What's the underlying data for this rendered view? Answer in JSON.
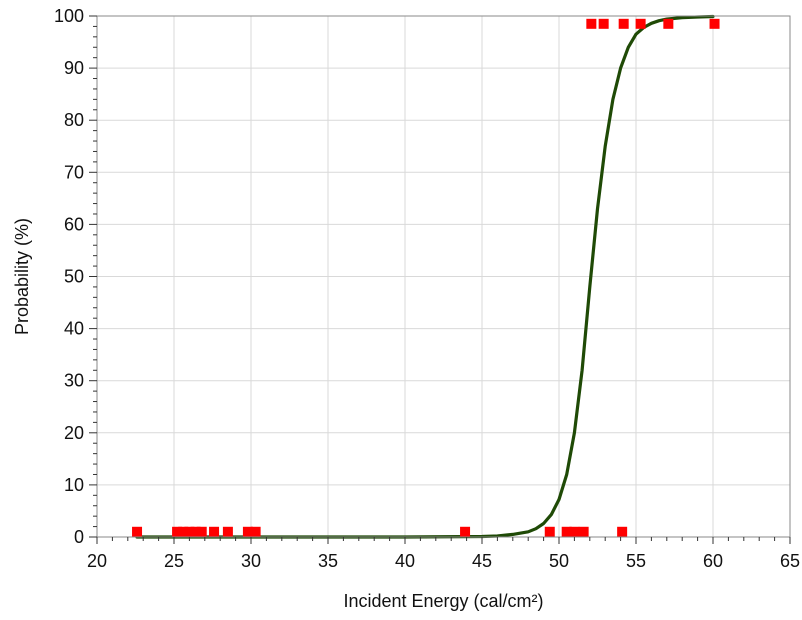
{
  "chart_data": {
    "type": "scatter",
    "title": "",
    "xlabel": "Incident Energy (cal/cm²)",
    "ylabel": "Probability (%)",
    "xlim": [
      20,
      65
    ],
    "ylim": [
      0,
      100
    ],
    "x_ticks": [
      "20",
      "25",
      "30",
      "35",
      "40",
      "45",
      "50",
      "55",
      "60",
      "65"
    ],
    "y_ticks": [
      "0",
      "10",
      "20",
      "30",
      "40",
      "50",
      "60",
      "70",
      "80",
      "90",
      "100"
    ],
    "grid": true,
    "legend": "none",
    "series": [
      {
        "kind": "points",
        "color": "#ff0000",
        "marker": "square",
        "points": [
          {
            "x": 22.6,
            "y": 1
          },
          {
            "x": 25.2,
            "y": 1
          },
          {
            "x": 25.6,
            "y": 1
          },
          {
            "x": 26.0,
            "y": 1
          },
          {
            "x": 26.4,
            "y": 1
          },
          {
            "x": 26.8,
            "y": 1
          },
          {
            "x": 27.6,
            "y": 1
          },
          {
            "x": 28.5,
            "y": 1
          },
          {
            "x": 29.8,
            "y": 1
          },
          {
            "x": 30.3,
            "y": 1
          },
          {
            "x": 43.9,
            "y": 1
          },
          {
            "x": 49.4,
            "y": 1
          },
          {
            "x": 50.5,
            "y": 1
          },
          {
            "x": 51.0,
            "y": 1
          },
          {
            "x": 51.6,
            "y": 1
          },
          {
            "x": 54.1,
            "y": 1
          },
          {
            "x": 52.1,
            "y": 98.5
          },
          {
            "x": 52.9,
            "y": 98.5
          },
          {
            "x": 54.2,
            "y": 98.5
          },
          {
            "x": 55.3,
            "y": 98.5
          },
          {
            "x": 57.1,
            "y": 98.5
          },
          {
            "x": 60.1,
            "y": 98.5
          }
        ]
      },
      {
        "kind": "curve",
        "color": "#1f4a06",
        "points": [
          {
            "x": 22.6,
            "y": 0
          },
          {
            "x": 30,
            "y": 0
          },
          {
            "x": 40,
            "y": 0
          },
          {
            "x": 45,
            "y": 0.1
          },
          {
            "x": 46,
            "y": 0.2
          },
          {
            "x": 47,
            "y": 0.5
          },
          {
            "x": 48,
            "y": 1.0
          },
          {
            "x": 48.5,
            "y": 1.6
          },
          {
            "x": 49,
            "y": 2.6
          },
          {
            "x": 49.5,
            "y": 4.3
          },
          {
            "x": 50,
            "y": 7.2
          },
          {
            "x": 50.5,
            "y": 12
          },
          {
            "x": 51,
            "y": 20
          },
          {
            "x": 51.5,
            "y": 32
          },
          {
            "x": 52,
            "y": 48
          },
          {
            "x": 52.5,
            "y": 63
          },
          {
            "x": 53,
            "y": 75
          },
          {
            "x": 53.5,
            "y": 84
          },
          {
            "x": 54,
            "y": 90
          },
          {
            "x": 54.5,
            "y": 94
          },
          {
            "x": 55,
            "y": 96.5
          },
          {
            "x": 55.5,
            "y": 97.8
          },
          {
            "x": 56,
            "y": 98.6
          },
          {
            "x": 56.5,
            "y": 99.1
          },
          {
            "x": 57,
            "y": 99.4
          },
          {
            "x": 58,
            "y": 99.7
          },
          {
            "x": 59,
            "y": 99.8
          },
          {
            "x": 60,
            "y": 99.9
          }
        ]
      }
    ]
  }
}
